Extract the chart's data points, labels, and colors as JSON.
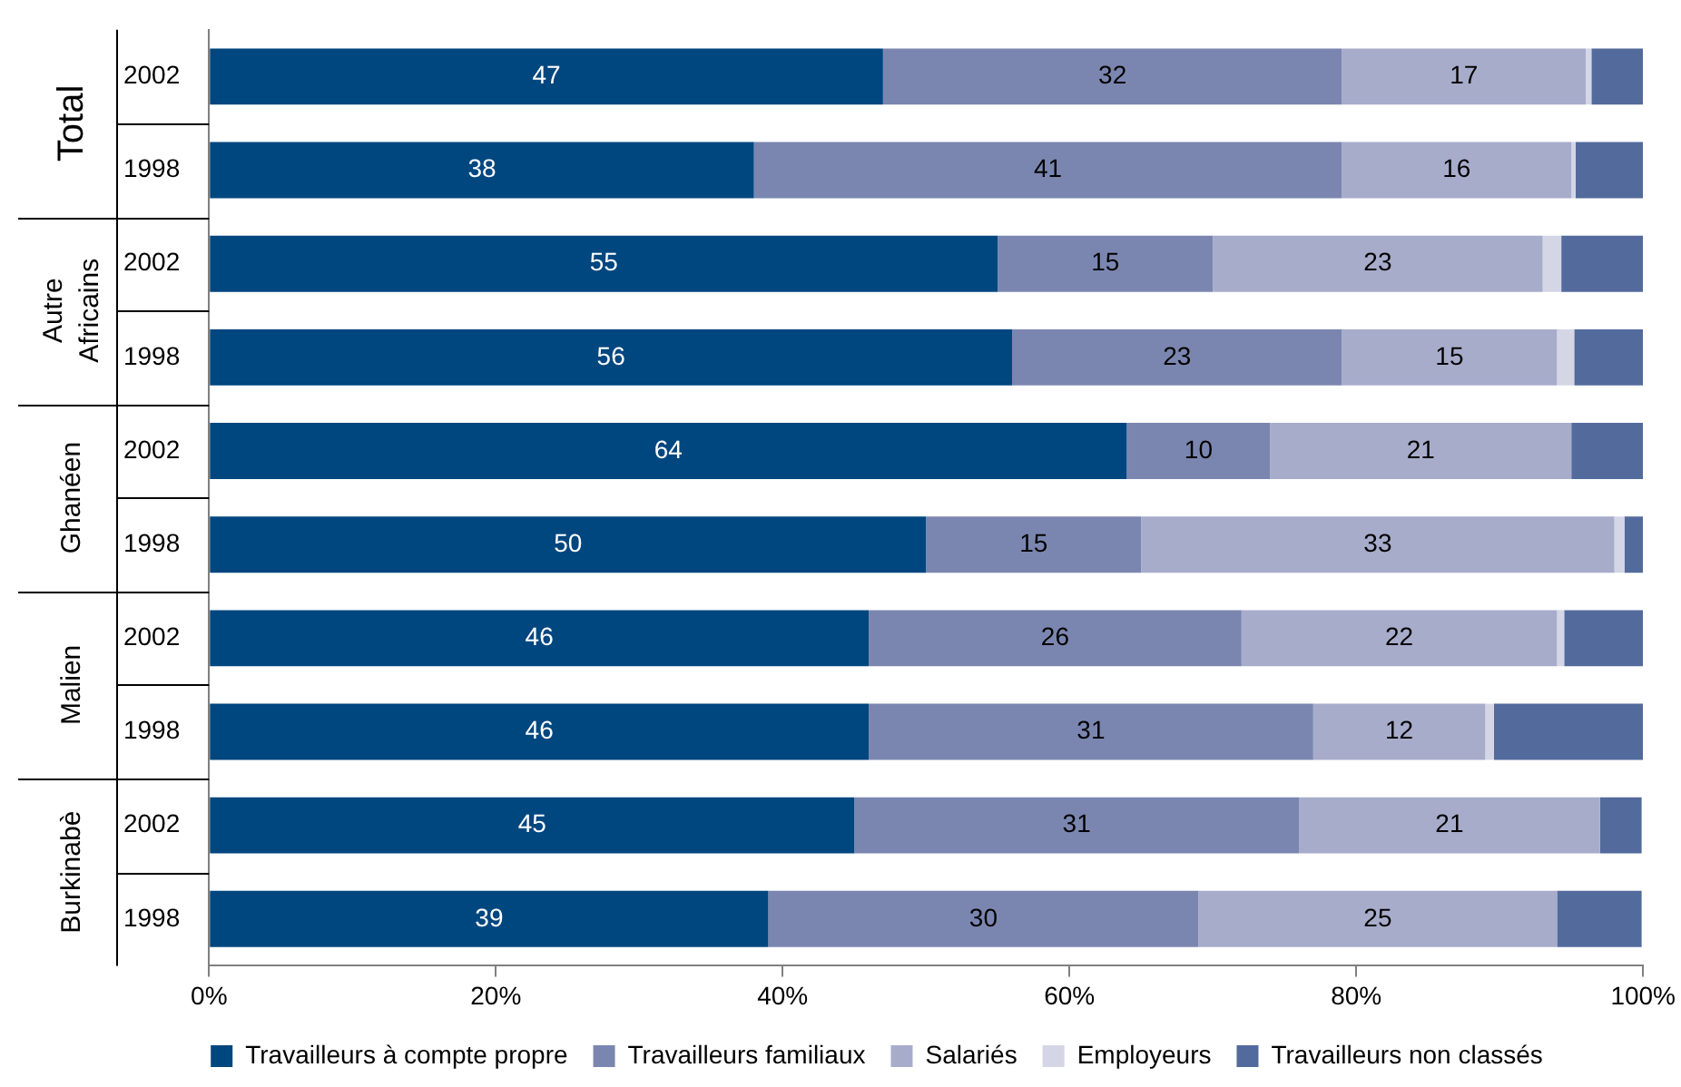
{
  "chart_data": {
    "type": "bar",
    "orientation": "horizontal",
    "stacked": true,
    "categories": [
      "2002",
      "1998",
      "2002",
      "1998",
      "2002",
      "1998",
      "2002",
      "1998",
      "2002",
      "1998"
    ],
    "annotations": [
      "Total",
      "Autre Africains",
      "Ghanéen",
      "Malien",
      "Burkinabè"
    ],
    "series": [
      {
        "name": "Travailleurs à compte propre",
        "color": "#00467f",
        "values": [
          47,
          38,
          55,
          56,
          64,
          50,
          46,
          46,
          45,
          39
        ],
        "value_labels": [
          "47",
          "38",
          "55",
          "56",
          "64",
          "50",
          "46",
          "46",
          "45",
          "39"
        ]
      },
      {
        "name": "Travailleurs familiaux",
        "color": "#7b86b0",
        "values": [
          32,
          41,
          15,
          23,
          10,
          15,
          26,
          31,
          31,
          30
        ],
        "value_labels": [
          "32",
          "41",
          "15",
          "23",
          "10",
          "15",
          "26",
          "31",
          "31",
          "30"
        ]
      },
      {
        "name": "Salariés",
        "color": "#a8accb",
        "values": [
          17,
          16,
          23,
          15,
          21,
          33,
          22,
          12,
          21,
          25
        ],
        "value_labels": [
          "17",
          "16",
          "23",
          "15",
          "21",
          "33",
          "22",
          "12",
          "21",
          "25"
        ]
      },
      {
        "name": "Employeurs",
        "color": "#d4d6e6",
        "values": [
          0.4,
          0.3,
          1.3,
          1.2,
          0,
          0.7,
          0.5,
          0.6,
          0,
          0
        ]
      },
      {
        "name": "Travailleurs non classés",
        "color": "#536a9c",
        "values": [
          3.6,
          4.7,
          5.7,
          4.8,
          5,
          1.3,
          5.5,
          10.4,
          2.9,
          5.9
        ]
      }
    ],
    "xlim": [
      0,
      100
    ],
    "xticks": [
      {
        "value": 0,
        "label": "0%"
      },
      {
        "value": 20,
        "label": "20%"
      },
      {
        "value": 40,
        "label": "40%"
      },
      {
        "value": 60,
        "label": "60%"
      },
      {
        "value": 80,
        "label": "80%"
      },
      {
        "value": 100,
        "label": "100%"
      }
    ],
    "grid": false,
    "legend": "bottom"
  }
}
